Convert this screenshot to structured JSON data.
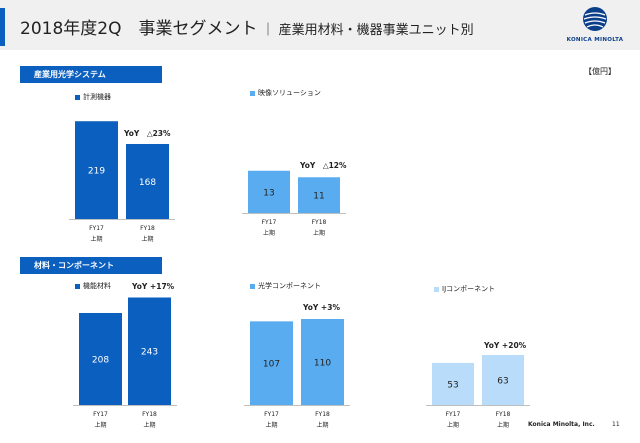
{
  "header": {
    "title": "2018年度2Q　事業セグメント",
    "subtitle": "｜ 産業用材料・機器事業ユニット別",
    "logo_text": "KONICA MINOLTA"
  },
  "unit_label": "【億円】",
  "sections": {
    "optical": "産業用光学システム",
    "materials": "材料・コンポーネント"
  },
  "footer": {
    "company": "Konica Minolta, Inc.",
    "page": "11"
  },
  "chart_data": [
    {
      "type": "bar",
      "name": "計測機器",
      "categories": [
        "FY17\n上期",
        "FY18\n上期"
      ],
      "values": [
        219,
        168
      ],
      "annotation": "YoY　△23%",
      "color": "#0b5fbf"
    },
    {
      "type": "bar",
      "name": "映像ソリューション",
      "categories": [
        "FY17\n上期",
        "FY18\n上期"
      ],
      "values": [
        13,
        11
      ],
      "annotation": "YoY　△12%",
      "color": "#5aacf0"
    },
    {
      "type": "bar",
      "name": "機能材料",
      "categories": [
        "FY17\n上期",
        "FY18\n上期"
      ],
      "values": [
        208,
        243
      ],
      "annotation": "YoY +17%",
      "color": "#0b5fbf"
    },
    {
      "type": "bar",
      "name": "光学コンポーネント",
      "categories": [
        "FY17\n上期",
        "FY18\n上期"
      ],
      "values": [
        107,
        110
      ],
      "annotation": "YoY +3%",
      "color": "#5aacf0"
    },
    {
      "type": "bar",
      "name": "IJコンポーネント",
      "categories": [
        "FY17\n上期",
        "FY18\n上期"
      ],
      "values": [
        53,
        63
      ],
      "annotation": "YoY +20%",
      "color": "#b9dcfb"
    }
  ]
}
